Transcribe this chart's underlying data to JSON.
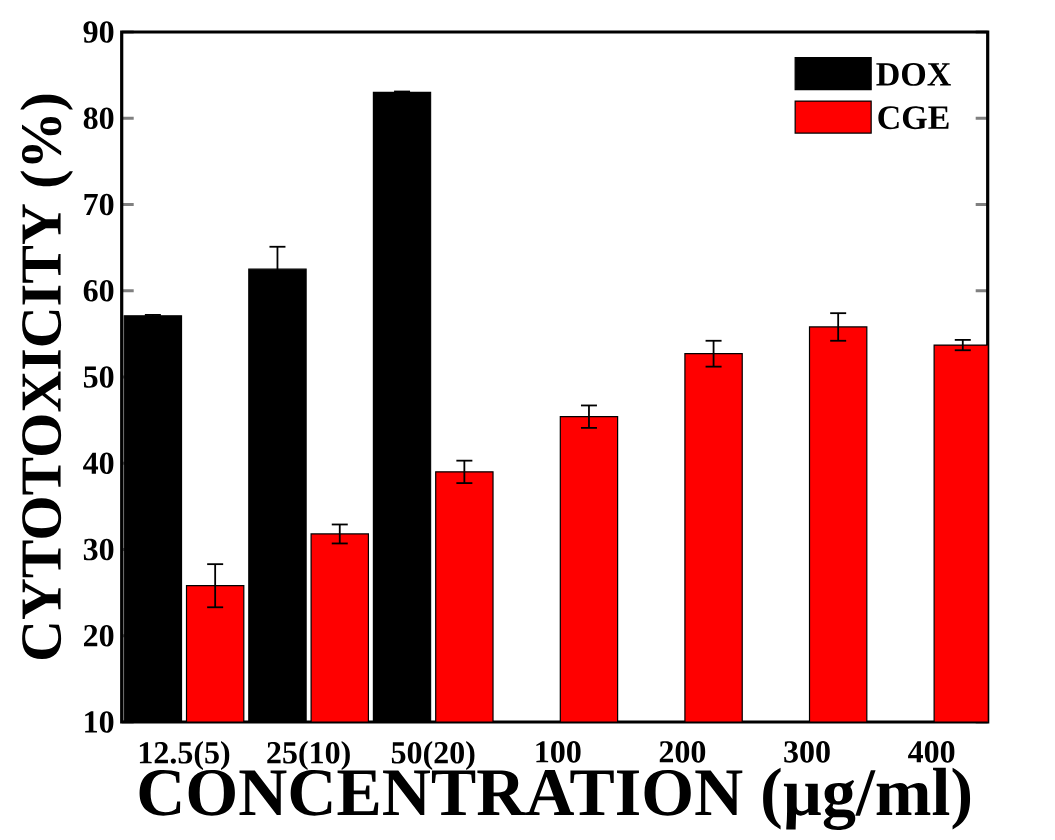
{
  "chart_data": {
    "type": "bar",
    "xlabel": "CONCENTRATION (µg/ml)",
    "ylabel": "CYTOTOXICITY (%)",
    "categories": [
      "12.5(5)",
      "25(10)",
      "50(20)",
      "100",
      "200",
      "300",
      "400"
    ],
    "series": [
      {
        "name": "DOX",
        "color": "#000000",
        "values": [
          57.1,
          62.5,
          83.0,
          null,
          null,
          null,
          null
        ],
        "errors": [
          0.1,
          2.6,
          0.1,
          null,
          null,
          null,
          null
        ]
      },
      {
        "name": "CGE",
        "color": "#ff0000",
        "values": [
          25.8,
          31.8,
          39.0,
          45.4,
          52.7,
          55.8,
          53.7
        ],
        "errors": [
          2.5,
          1.1,
          1.3,
          1.3,
          1.5,
          1.6,
          0.6
        ]
      }
    ],
    "ylim": [
      10,
      90
    ],
    "yticks": [
      10,
      20,
      30,
      40,
      50,
      60,
      70,
      80,
      90
    ],
    "grid": false,
    "legend": "top right"
  }
}
